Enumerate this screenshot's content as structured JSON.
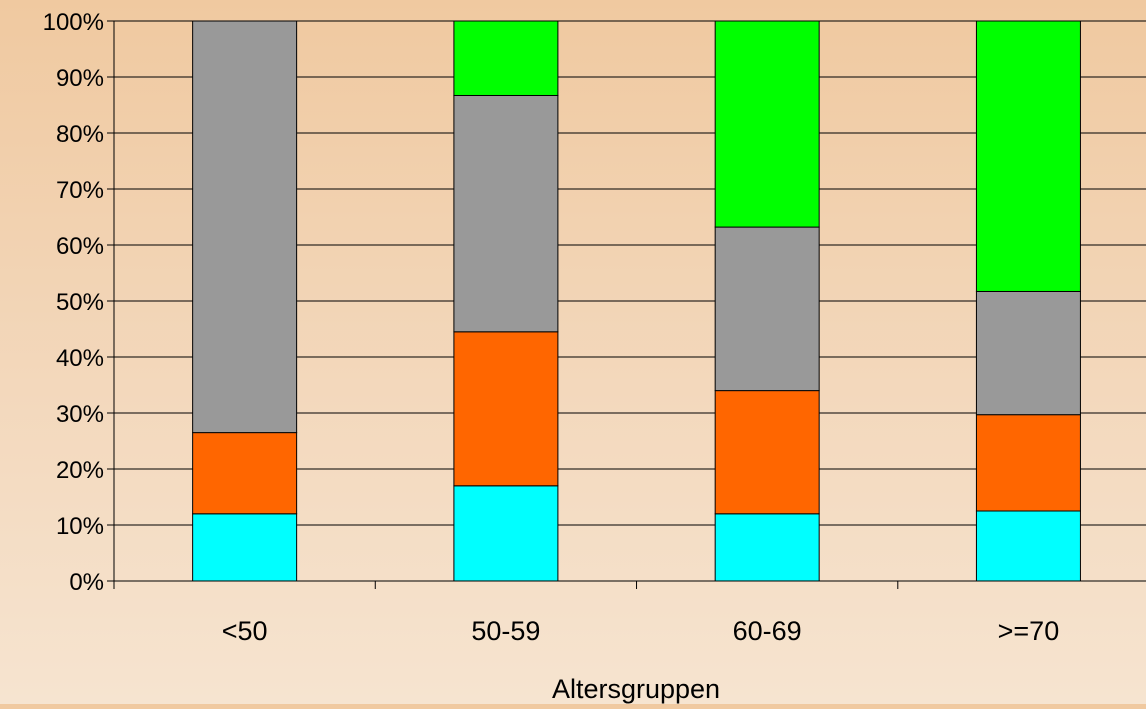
{
  "chart_data": {
    "type": "bar",
    "stacked": true,
    "percent_stacked": true,
    "title": "",
    "xlabel": "Altersgruppen",
    "ylabel": "",
    "categories": [
      "<50",
      "50-59",
      "60-69",
      ">=70"
    ],
    "y_tick_labels": [
      "0%",
      "10%",
      "20%",
      "30%",
      "40%",
      "50%",
      "60%",
      "70%",
      "80%",
      "90%",
      "100%"
    ],
    "ylim": [
      0,
      100
    ],
    "grid": true,
    "legend": "none",
    "series": [
      {
        "color": "#00ffff",
        "values": [
          12,
          17,
          12,
          12.5
        ]
      },
      {
        "color": "#ff6600",
        "values": [
          14.5,
          27.5,
          22,
          17.2
        ]
      },
      {
        "color": "#999999",
        "values": [
          73.5,
          42.2,
          29.2,
          22
        ]
      },
      {
        "color": "#00ff00",
        "values": [
          0,
          13.3,
          36.8,
          48.3
        ]
      }
    ]
  }
}
